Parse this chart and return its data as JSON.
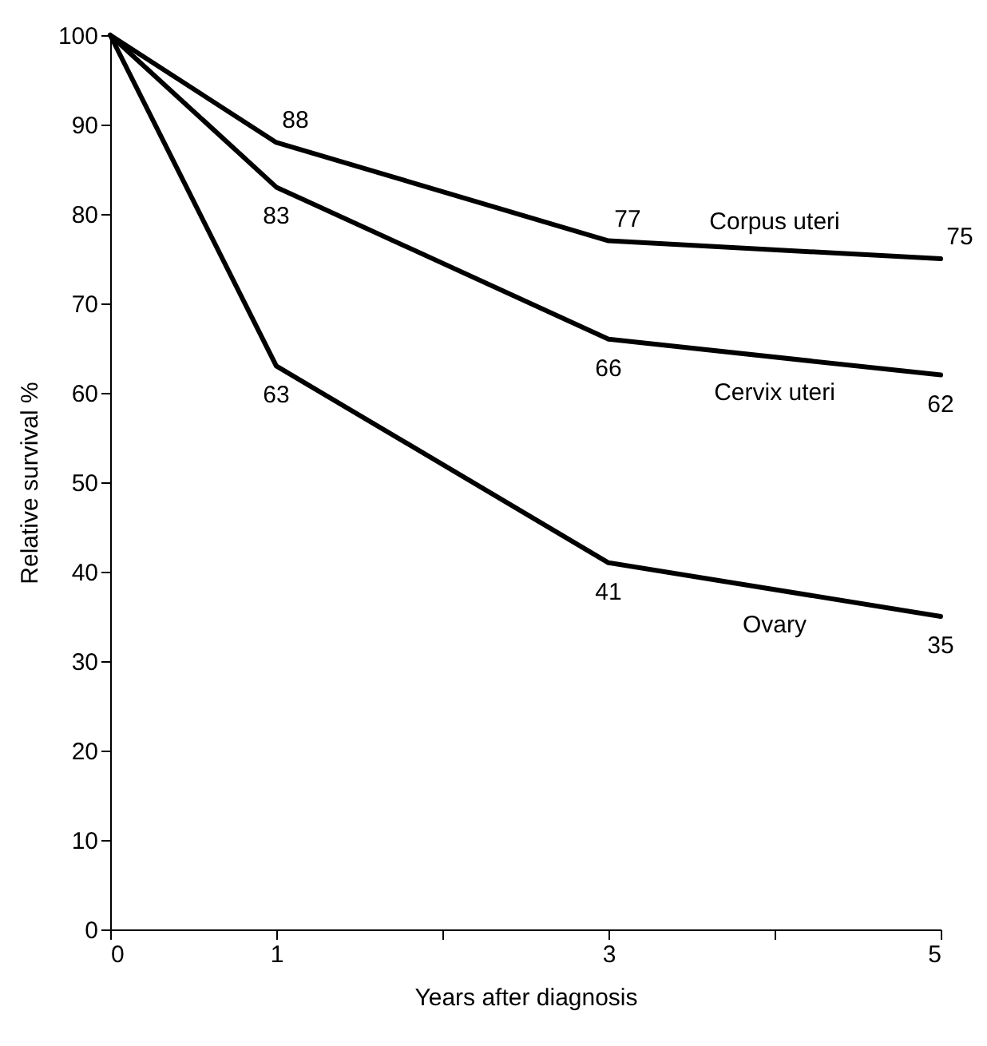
{
  "chart_data": {
    "type": "line",
    "xlabel": "Years after diagnosis",
    "ylabel": "Relative survival %",
    "xlim": [
      0,
      5
    ],
    "xticks": [
      0,
      1,
      {
        "value": 2,
        "label": null
      },
      3,
      {
        "value": 4,
        "label": null
      },
      5
    ],
    "ylim": [
      0,
      100
    ],
    "yticks": [
      0,
      10,
      20,
      30,
      40,
      50,
      60,
      70,
      80,
      90,
      100
    ],
    "grid": false,
    "legend": false,
    "marker": "none",
    "line_style": "solid",
    "series": [
      {
        "name": "Corpus uteri",
        "color": "#000000",
        "x": [
          0,
          1,
          3,
          5
        ],
        "values": [
          100,
          88,
          77,
          75
        ],
        "value_labels": [
          null,
          "88",
          "77",
          "75"
        ]
      },
      {
        "name": "Cervix uteri",
        "color": "#000000",
        "x": [
          0,
          1,
          3,
          5
        ],
        "values": [
          100,
          83,
          66,
          62
        ],
        "value_labels": [
          null,
          "83",
          "66",
          "62"
        ]
      },
      {
        "name": "Ovary",
        "color": "#000000",
        "x": [
          0,
          1,
          3,
          5
        ],
        "values": [
          100,
          63,
          41,
          35
        ],
        "value_labels": [
          null,
          "63",
          "41",
          "35"
        ]
      }
    ]
  }
}
